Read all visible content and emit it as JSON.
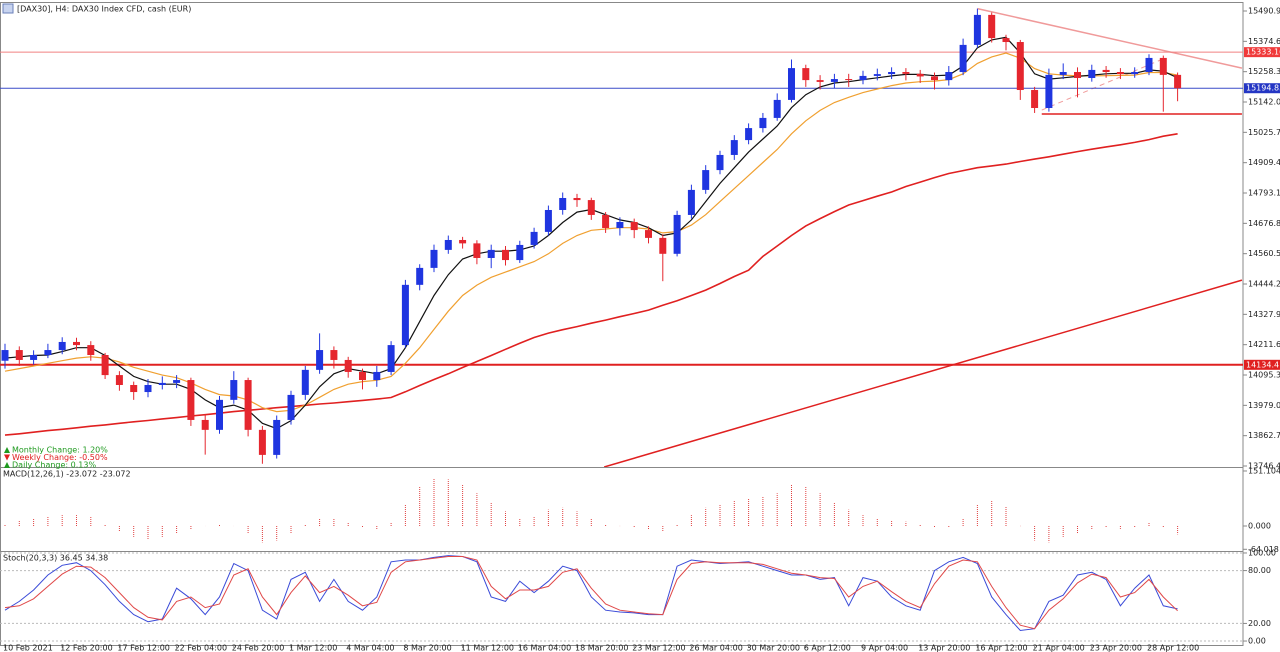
{
  "chart_data": [
    {
      "type": "candlestick",
      "title": "[DAX30], H4:  DAX30 Index CFD, cash (EUR)",
      "categories": [
        "10 Feb 2021",
        null,
        null,
        null,
        "12 Feb 20:00",
        null,
        null,
        null,
        "17 Feb 12:00",
        null,
        null,
        null,
        "22 Feb 04:00",
        null,
        null,
        null,
        "24 Feb 20:00",
        null,
        null,
        null,
        "1 Mar 12:00",
        null,
        null,
        null,
        "4 Mar 04:00",
        null,
        null,
        null,
        "8 Mar 20:00",
        null,
        null,
        null,
        "11 Mar 12:00",
        null,
        null,
        null,
        "16 Mar 04:00",
        null,
        null,
        null,
        "18 Mar 20:00",
        null,
        null,
        null,
        "23 Mar 12:00",
        null,
        null,
        null,
        "26 Mar 04:00",
        null,
        null,
        null,
        "30 Mar 20:00",
        null,
        null,
        null,
        "6 Apr 12:00",
        null,
        null,
        null,
        "9 Apr 04:00",
        null,
        null,
        null,
        "13 Apr 20:00",
        null,
        null,
        null,
        "16 Apr 12:00",
        null,
        null,
        null,
        "21 Apr 04:00",
        null,
        null,
        null,
        "23 Apr 20:00",
        null,
        null,
        null,
        "28 Apr 12:00",
        null,
        null
      ],
      "open": [
        14150,
        14191,
        14153,
        14172,
        14191,
        14222,
        14210,
        14172,
        14095,
        14057,
        14030,
        14057,
        14065,
        14076,
        13923,
        13885,
        14000,
        14076,
        13885,
        13789,
        13923,
        14019,
        14115,
        14191,
        14153,
        14107,
        14076,
        14107,
        14210,
        14441,
        14506,
        14575,
        14613,
        14600,
        14544,
        14575,
        14536,
        14594,
        14644,
        14728,
        14774,
        14766,
        14709,
        14659,
        14682,
        14651,
        14621,
        14560,
        14709,
        14805,
        14881,
        14939,
        14996,
        15042,
        15081,
        15150,
        15272,
        15226,
        15219,
        15230,
        15226,
        15242,
        15249,
        15257,
        15250,
        15240,
        15226,
        15257,
        15361,
        15476,
        15387,
        15372,
        15188,
        15119,
        15246,
        15257,
        15234,
        15265,
        15257,
        15249,
        15257,
        15311,
        15246
      ],
      "high": [
        14215,
        14205,
        14190,
        14215,
        14240,
        14238,
        14225,
        14180,
        14110,
        14070,
        14080,
        14090,
        14095,
        14085,
        13945,
        14015,
        14110,
        14085,
        13900,
        13940,
        14035,
        14130,
        14255,
        14205,
        14165,
        14120,
        14130,
        14225,
        14460,
        14520,
        14595,
        14630,
        14625,
        14612,
        14595,
        14590,
        14610,
        14660,
        14745,
        14795,
        14790,
        14775,
        14720,
        14700,
        14695,
        14665,
        14635,
        14725,
        14825,
        14900,
        14955,
        15015,
        15060,
        15100,
        15175,
        15305,
        15285,
        15245,
        15250,
        15250,
        15262,
        15270,
        15275,
        15272,
        15265,
        15255,
        15280,
        15385,
        15500,
        15485,
        15400,
        15380,
        15200,
        15270,
        15290,
        15275,
        15285,
        15280,
        15272,
        15275,
        15325,
        15320,
        15255
      ],
      "low": [
        14120,
        14130,
        14135,
        14160,
        14175,
        14190,
        14150,
        14080,
        14035,
        14000,
        14010,
        14040,
        14045,
        13900,
        13790,
        13870,
        13985,
        13860,
        13755,
        13775,
        13905,
        14000,
        14100,
        14120,
        14085,
        14040,
        14050,
        14095,
        14200,
        14420,
        14490,
        14560,
        14580,
        14520,
        14505,
        14515,
        14525,
        14580,
        14630,
        14710,
        14740,
        14690,
        14640,
        14630,
        14620,
        14600,
        14455,
        14550,
        14695,
        14790,
        14865,
        14920,
        14980,
        15025,
        15070,
        15140,
        15200,
        15190,
        15195,
        15200,
        15210,
        15225,
        15230,
        15225,
        15215,
        15190,
        15205,
        15245,
        15350,
        15370,
        15340,
        15150,
        15100,
        15105,
        15230,
        15160,
        15220,
        15235,
        15230,
        15235,
        15245,
        15105,
        15145
      ],
      "close": [
        14191,
        14153,
        14172,
        14191,
        14222,
        14210,
        14172,
        14095,
        14057,
        14030,
        14057,
        14065,
        14076,
        13923,
        13885,
        14000,
        14076,
        13885,
        13789,
        13923,
        14019,
        14115,
        14191,
        14153,
        14107,
        14076,
        14107,
        14210,
        14441,
        14506,
        14575,
        14613,
        14600,
        14544,
        14575,
        14536,
        14594,
        14644,
        14728,
        14774,
        14766,
        14709,
        14659,
        14682,
        14651,
        14621,
        14560,
        14709,
        14805,
        14881,
        14939,
        14996,
        15042,
        15081,
        15150,
        15272,
        15226,
        15219,
        15230,
        15226,
        15242,
        15249,
        15257,
        15250,
        15240,
        15226,
        15257,
        15361,
        15476,
        15387,
        15372,
        15188,
        15119,
        15246,
        15257,
        15234,
        15265,
        15257,
        15249,
        15257,
        15311,
        15246,
        15194.85
      ],
      "up_color": "#1f35e0",
      "down_color": "#e5262e",
      "series": [
        {
          "color": "#e02020",
          "width": 1.6,
          "values": [
            13865,
            13870,
            13876,
            13882,
            13887,
            13893,
            13899,
            13904,
            13910,
            13916,
            13921,
            13927,
            13932,
            13938,
            13943,
            13949,
            13955,
            13960,
            13965,
            13970,
            13974,
            13979,
            13984,
            13988,
            13993,
            13998,
            14003,
            14009,
            14031,
            14055,
            14078,
            14100,
            14124,
            14147,
            14170,
            14194,
            14217,
            14239,
            14256,
            14269,
            14281,
            14294,
            14306,
            14319,
            14331,
            14344,
            14363,
            14380,
            14400,
            14421,
            14446,
            14473,
            14497,
            14550,
            14590,
            14630,
            14667,
            14695,
            14722,
            14747,
            14764,
            14781,
            14797,
            14818,
            14835,
            14852,
            14868,
            14879,
            14890,
            14897,
            14904,
            14914,
            14923,
            14932,
            14942,
            14952,
            14961,
            14970,
            14978,
            14987,
            14998,
            15011,
            15020
          ]
        },
        {
          "color": "#f0a030",
          "width": 1.2,
          "values": [
            14110,
            14120,
            14130,
            14140,
            14150,
            14160,
            14165,
            14160,
            14145,
            14125,
            14110,
            14095,
            14085,
            14065,
            14040,
            14020,
            14015,
            14000,
            13970,
            13955,
            13960,
            13980,
            14010,
            14040,
            14060,
            14070,
            14075,
            14090,
            14140,
            14200,
            14270,
            14340,
            14400,
            14440,
            14470,
            14490,
            14510,
            14530,
            14560,
            14600,
            14630,
            14650,
            14655,
            14660,
            14660,
            14655,
            14640,
            14645,
            14670,
            14710,
            14760,
            14810,
            14860,
            14910,
            14960,
            15020,
            15070,
            15110,
            15140,
            15160,
            15178,
            15192,
            15205,
            15215,
            15220,
            15222,
            15228,
            15250,
            15290,
            15315,
            15330,
            15310,
            15270,
            15250,
            15245,
            15242,
            15242,
            15243,
            15244,
            15245,
            15255,
            15255,
            15245
          ]
        },
        {
          "color": "#111111",
          "width": 1.2,
          "values": [
            14160,
            14165,
            14170,
            14172,
            14185,
            14200,
            14200,
            14170,
            14130,
            14090,
            14070,
            14060,
            14060,
            14040,
            14000,
            13970,
            13980,
            13960,
            13910,
            13890,
            13920,
            13980,
            14050,
            14100,
            14120,
            14110,
            14100,
            14120,
            14200,
            14300,
            14400,
            14480,
            14540,
            14560,
            14570,
            14570,
            14575,
            14590,
            14630,
            14680,
            14720,
            14730,
            14710,
            14690,
            14680,
            14660,
            14630,
            14640,
            14690,
            14760,
            14830,
            14890,
            14950,
            15000,
            15050,
            15120,
            15170,
            15200,
            15215,
            15220,
            15228,
            15235,
            15242,
            15248,
            15248,
            15243,
            15245,
            15280,
            15350,
            15380,
            15390,
            15330,
            15250,
            15230,
            15235,
            15240,
            15245,
            15250,
            15252,
            15252,
            15265,
            15260,
            15235
          ]
        }
      ],
      "levels": [
        {
          "value": 15333.16,
          "color": "#f08080",
          "width": 1,
          "label_color": "#f03a3a"
        },
        {
          "value": 15194.85,
          "color": "#3a4bc8",
          "width": 1,
          "label_color": "#2436c4"
        },
        {
          "value": 14134.41,
          "color": "#e02020",
          "width": 2,
          "label_color": "#e02020"
        }
      ],
      "trend_lines": [
        {
          "from": [
            68,
            15500
          ],
          "to": [
            86.5,
            15272
          ],
          "color": "#f09a9a",
          "width": 1.5,
          "dash": false
        },
        {
          "from": [
            72.5,
            15096
          ],
          "to": [
            86.5,
            15096
          ],
          "color": "#e02020",
          "width": 1.5,
          "dash": false
        },
        {
          "from": [
            72.5,
            15111
          ],
          "to": [
            80.8,
            15303
          ],
          "color": "#f09a9a",
          "width": 1,
          "dash": true
        },
        {
          "from": [
            41.9,
            13742.6
          ],
          "to": [
            86.5,
            14459
          ],
          "color": "#e02020",
          "width": 1.5,
          "dash": false
        }
      ],
      "info": [
        {
          "text": "Monthly Change: 1.20%",
          "color": "#1f9a1f",
          "direction": "up"
        },
        {
          "text": "Weekly Change: -0.50%",
          "color": "#e02020",
          "direction": "down"
        },
        {
          "text": "Daily Change: 0.13%",
          "color": "#1f9a1f",
          "direction": "up"
        }
      ],
      "ylim": [
        13742.6,
        15521.6
      ],
      "yticks": [
        {
          "value": 15490.9,
          "label": "15490.90"
        },
        {
          "value": 15374.6,
          "label": "15374.60"
        },
        {
          "value": 15258.3,
          "label": "15258.30"
        },
        {
          "value": 15142,
          "label": "15142.00"
        },
        {
          "value": 15025.7,
          "label": "15025.70"
        },
        {
          "value": 14909.4,
          "label": "14909.40"
        },
        {
          "value": 14793.1,
          "label": "14793.10"
        },
        {
          "value": 14676.8,
          "label": "14676.80"
        },
        {
          "value": 14560.5,
          "label": "14560.50"
        },
        {
          "value": 14444.2,
          "label": "14444.20"
        },
        {
          "value": 14327.9,
          "label": "14327.90"
        },
        {
          "value": 14211.6,
          "label": "14211.60"
        },
        {
          "value": 14095.3,
          "label": "14095.30"
        },
        {
          "value": 13979,
          "label": "13979.00"
        },
        {
          "value": 13862.7,
          "label": "13862.70"
        },
        {
          "value": 13746.4,
          "label": "13746.40"
        }
      ]
    },
    {
      "type": "bar",
      "title": "MACD(12,26,1) -23.072 -23.072",
      "color": "#e04040",
      "values": [
        5,
        15,
        20,
        25,
        30,
        30,
        25,
        5,
        -15,
        -30,
        -38,
        -30,
        -20,
        -10,
        0,
        5,
        0,
        -20,
        -45,
        -40,
        -20,
        5,
        20,
        22,
        10,
        -5,
        -10,
        10,
        60,
        110,
        132,
        128,
        115,
        90,
        65,
        40,
        20,
        25,
        45,
        50,
        40,
        20,
        5,
        0,
        -5,
        -10,
        -15,
        5,
        30,
        50,
        60,
        70,
        75,
        80,
        90,
        115,
        110,
        90,
        65,
        45,
        30,
        20,
        15,
        12,
        5,
        -5,
        -5,
        20,
        60,
        71,
        55,
        0,
        -40,
        -45,
        -30,
        -20,
        -10,
        -5,
        -8,
        -3,
        10,
        -5,
        -23.072
      ],
      "ylim": [
        -68.7,
        159.3
      ],
      "yticks": [
        151.104,
        {
          "value": 0,
          "label": "0.000"
        },
        -64.018
      ]
    },
    {
      "type": "line",
      "title": "Stoch(20,3,3) 36.45 34.38",
      "series": [
        {
          "color": "#3b4bd8",
          "values": [
            35,
            45,
            58,
            75,
            86,
            89,
            80,
            64,
            45,
            30,
            22,
            25,
            60,
            48,
            30,
            50,
            88,
            80,
            35,
            25,
            70,
            78,
            45,
            70,
            45,
            35,
            50,
            90,
            92,
            92,
            95,
            97,
            96,
            90,
            50,
            45,
            68,
            55,
            68,
            85,
            80,
            50,
            35,
            33,
            32,
            30,
            30,
            85,
            92,
            90,
            88,
            89,
            90,
            85,
            80,
            75,
            75,
            70,
            72,
            40,
            72,
            68,
            50,
            40,
            35,
            80,
            90,
            95,
            88,
            50,
            30,
            12,
            14,
            45,
            52,
            75,
            78,
            70,
            40,
            60,
            75,
            40,
            36.45
          ]
        },
        {
          "color": "#e04848",
          "values": [
            38,
            40,
            48,
            62,
            76,
            85,
            84,
            72,
            55,
            38,
            27,
            24,
            45,
            50,
            38,
            42,
            75,
            82,
            50,
            30,
            55,
            74,
            55,
            62,
            52,
            40,
            44,
            78,
            90,
            92,
            94,
            96,
            96,
            92,
            62,
            48,
            58,
            58,
            62,
            78,
            82,
            60,
            42,
            35,
            33,
            31,
            30,
            70,
            88,
            90,
            89,
            89,
            89,
            87,
            82,
            77,
            75,
            72,
            71,
            50,
            62,
            68,
            56,
            45,
            38,
            65,
            85,
            92,
            90,
            62,
            38,
            18,
            14,
            35,
            48,
            66,
            76,
            72,
            50,
            55,
            70,
            50,
            34.38
          ]
        }
      ],
      "grid": true,
      "ylim": [
        -4.5,
        101.1
      ],
      "yticks": [
        {
          "value": 100,
          "label": "100.00"
        },
        {
          "value": 80,
          "label": "80.00"
        },
        {
          "value": 20,
          "label": "20.00"
        },
        {
          "value": 0,
          "label": "0.00"
        }
      ]
    }
  ]
}
